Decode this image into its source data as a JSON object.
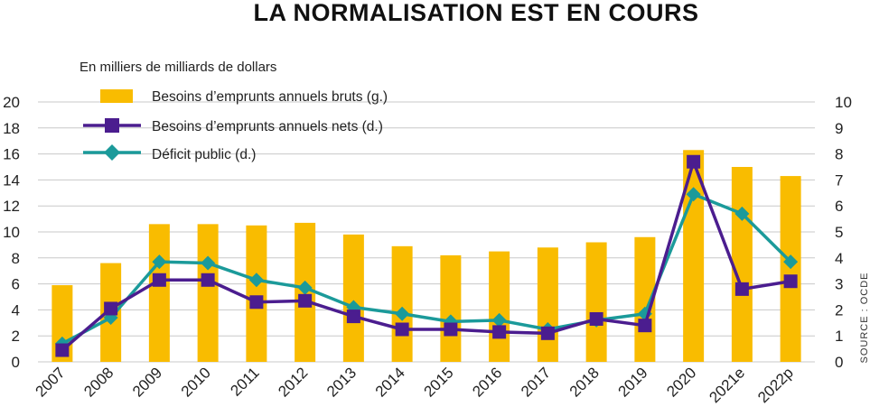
{
  "chart_data": {
    "type": "bar",
    "title": "LA NORMALISATION EST EN COURS",
    "unit_label": "En milliers de milliards de dollars",
    "source": "SOURCE : OCDE",
    "categories": [
      "2007",
      "2008",
      "2009",
      "2010",
      "2011",
      "2012",
      "2013",
      "2014",
      "2015",
      "2016",
      "2017",
      "2018",
      "2019",
      "2020",
      "2021e",
      "2022p"
    ],
    "ylim_left": [
      0,
      20
    ],
    "yticks_left": [
      "0",
      "2",
      "4",
      "6",
      "8",
      "10",
      "12",
      "14",
      "16",
      "18",
      "20"
    ],
    "ylim_right": [
      0,
      10
    ],
    "yticks_right": [
      "0",
      "1",
      "2",
      "3",
      "4",
      "5",
      "6",
      "7",
      "8",
      "9",
      "10"
    ],
    "grid": true,
    "legend_position": "top-left",
    "colors": {
      "bars": "#F9BC00",
      "net": "#4B1D8F",
      "deficit": "#1B9A9A",
      "grid": "#c8c8c8"
    },
    "series": [
      {
        "name": "Besoins d’emprunts annuels bruts (g.)",
        "kind": "bar",
        "axis": "left",
        "values": [
          5.9,
          7.6,
          10.6,
          10.6,
          10.5,
          10.7,
          9.8,
          8.9,
          8.2,
          8.5,
          8.8,
          9.2,
          9.6,
          16.3,
          15.0,
          14.3
        ]
      },
      {
        "name": "Besoins d’emprunts annuels nets (d.)",
        "kind": "line",
        "marker": "square",
        "axis": "right",
        "values": [
          0.45,
          2.05,
          3.15,
          3.15,
          2.3,
          2.35,
          1.75,
          1.25,
          1.25,
          1.15,
          1.1,
          1.65,
          1.4,
          7.7,
          2.8,
          3.1
        ]
      },
      {
        "name": "Déficit public (d.)",
        "kind": "line",
        "marker": "diamond",
        "axis": "right",
        "values": [
          0.7,
          1.7,
          3.85,
          3.8,
          3.15,
          2.85,
          2.1,
          1.85,
          1.55,
          1.6,
          1.25,
          1.6,
          1.85,
          6.45,
          5.7,
          3.85
        ]
      }
    ]
  }
}
